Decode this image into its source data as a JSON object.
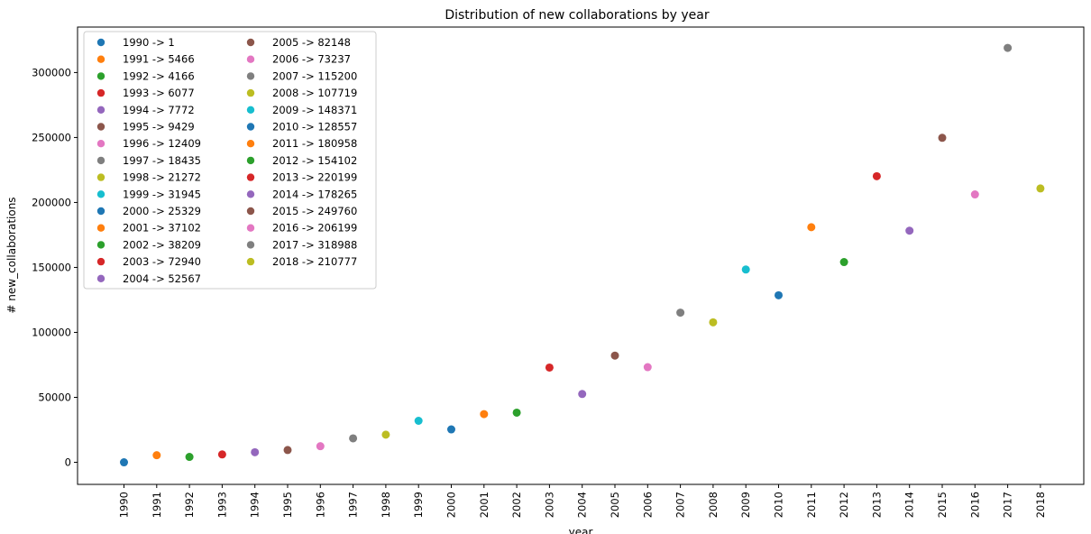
{
  "chart_data": {
    "type": "scatter",
    "title": "Distribution of new collaborations by year",
    "xlabel": "year",
    "ylabel": "# new_collaborations",
    "x": [
      "1990",
      "1991",
      "1992",
      "1993",
      "1994",
      "1995",
      "1996",
      "1997",
      "1998",
      "1999",
      "2000",
      "2001",
      "2002",
      "2003",
      "2004",
      "2005",
      "2006",
      "2007",
      "2008",
      "2009",
      "2010",
      "2011",
      "2012",
      "2013",
      "2014",
      "2015",
      "2016",
      "2017",
      "2018"
    ],
    "values": [
      1,
      5466,
      4166,
      6077,
      7772,
      9429,
      12409,
      18435,
      21272,
      31945,
      25329,
      37102,
      38209,
      72940,
      52567,
      82148,
      73237,
      115200,
      107719,
      148371,
      128557,
      180958,
      154102,
      220199,
      178265,
      249760,
      206199,
      318988,
      210777
    ],
    "legend": [
      "1990 -> 1",
      "1991 -> 5466",
      "1992 -> 4166",
      "1993 -> 6077",
      "1994 -> 7772",
      "1995 -> 9429",
      "1996 -> 12409",
      "1997 -> 18435",
      "1998 -> 21272",
      "1999 -> 31945",
      "2000 -> 25329",
      "2001 -> 37102",
      "2002 -> 38209",
      "2003 -> 72940",
      "2004 -> 52567",
      "2005 -> 82148",
      "2006 -> 73237",
      "2007 -> 115200",
      "2008 -> 107719",
      "2009 -> 148371",
      "2010 -> 128557",
      "2011 -> 180958",
      "2012 -> 154102",
      "2013 -> 220199",
      "2014 -> 178265",
      "2015 -> 249760",
      "2016 -> 206199",
      "2017 -> 318988",
      "2018 -> 210777"
    ],
    "colors": [
      "#1f77b4",
      "#ff7f0e",
      "#2ca02c",
      "#d62728",
      "#9467bd",
      "#8c564b",
      "#e377c2",
      "#7f7f7f",
      "#bcbd22",
      "#17becf"
    ],
    "y_ticks": [
      "0",
      "50000",
      "100000",
      "150000",
      "200000",
      "250000",
      "300000"
    ],
    "ylim": [
      -17000,
      335000
    ],
    "grid": false,
    "legend_position": "top-left",
    "legend_columns": 2
  }
}
